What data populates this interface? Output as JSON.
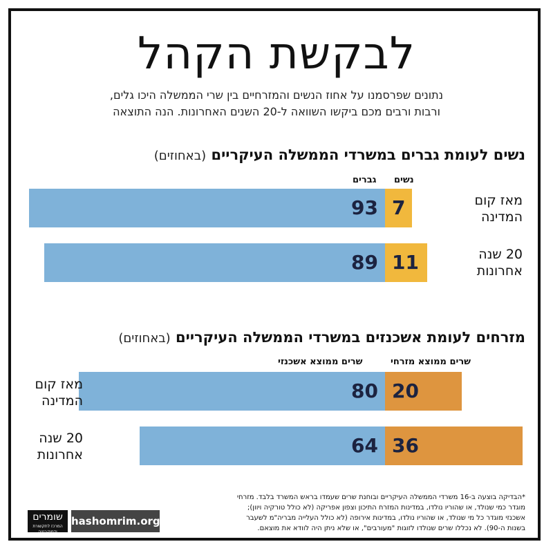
{
  "title": "לבקשת הקהל",
  "subtitle": {
    "line1": "נתונים שפרסמנו על אחוז הנשים והמזרחיים בין שרי הממשלה היכו גלים,",
    "line2": "ורבות ורבים מכם ביקשו השוואה ל-20 השנים האחרונות. הנה התוצאה"
  },
  "colors": {
    "blue": "#7fb2d9",
    "yellow": "#f1b83d",
    "orange": "#de953f",
    "value_text": "#1c2340"
  },
  "chart_data": [
    {
      "type": "bar",
      "stacked": true,
      "orientation": "horizontal",
      "title": "נשים לעומת גברים במשרדי הממשלה העיקריים",
      "unit": "(באחוזים)",
      "categories": [
        "מאז קום המדינה",
        "20 שנה אחרונות"
      ],
      "category_lines": [
        [
          "מאז קום",
          "המדינה"
        ],
        [
          "20 שנה",
          "אחרונות"
        ]
      ],
      "series": [
        {
          "name": "נשים",
          "values": [
            7,
            11
          ],
          "color": "#f1b83d"
        },
        {
          "name": "גברים",
          "values": [
            93,
            89
          ],
          "color": "#7fb2d9"
        }
      ],
      "xlim": [
        0,
        100
      ]
    },
    {
      "type": "bar",
      "stacked": true,
      "orientation": "horizontal",
      "title": "מזרחים לעומת אשכנזים במשרדי הממשלה העיקריים",
      "unit": "(באחוזים)",
      "categories": [
        "מאז קום המדינה",
        "20 שנה אחרונות"
      ],
      "category_lines": [
        [
          "מאז קום",
          "המדינה"
        ],
        [
          "20 שנה",
          "אחרונות"
        ]
      ],
      "series": [
        {
          "name": "שרים ממוצא מזרחי",
          "values": [
            20,
            36
          ],
          "color": "#de953f"
        },
        {
          "name": "שרים ממוצא אשכנזי",
          "values": [
            80,
            64
          ],
          "color": "#7fb2d9"
        }
      ],
      "xlim": [
        0,
        100
      ]
    }
  ],
  "footnote": {
    "line1": "*הבדיקה בוצעה ב-16 משרדי הממשלה העיקריים ובוחנת שרים שעמדו בראש המשרד בלבד. מזרחי",
    "line2": "מוגדר כמי שנולד, או שהוריו נולדו, במדינות המזרח התיכון וצפון אפריקה (לא כולל טורקיה ויוון);",
    "line3": "אשכנזי מוגדר כל מי שנולד, או שהוריו נולדו, במדינות אירופה (לא כולל העלייה מבריה\"מ לשעבר",
    "line4": "בשנות ה-90). לא נכללו שרים שנולדו לזוגות \"מעורבים\", או שלא ניתן היה לוודא את מוצאם."
  },
  "logo": {
    "name": "שומרים",
    "tagline": "המרכז לתקשורת ודמוקרטיה"
  },
  "website": "hashomrim.org"
}
